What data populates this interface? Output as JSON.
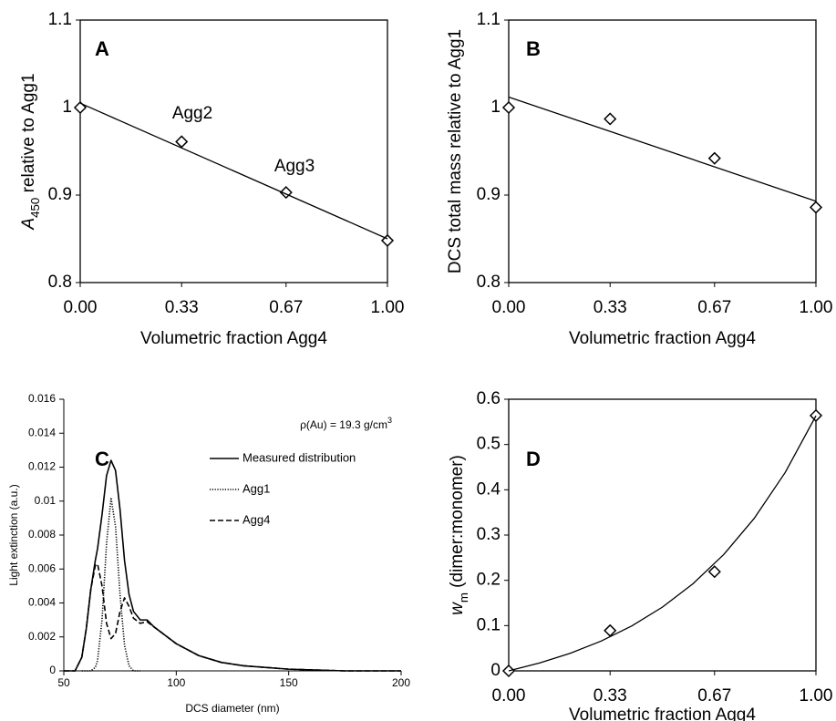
{
  "chart_data": [
    {
      "type": "scatter",
      "panel_label": "A",
      "x_label": "Volumetric fraction Agg4",
      "y_label": {
        "italic": "A",
        "sub": "450",
        "text": " relative to Agg1"
      },
      "xlim": [
        0,
        1
      ],
      "xticks": [
        {
          "value": 0,
          "label": "0.00"
        },
        0.33,
        0.67,
        {
          "value": 1,
          "label": "1.00"
        }
      ],
      "ylim": [
        0.8,
        1.1
      ],
      "yticks": [
        0.8,
        0.9,
        1,
        1.1
      ],
      "annotations": [
        "Agg2",
        "Agg3"
      ],
      "series": [
        {
          "style": "markers",
          "color": "#000000",
          "x": [
            0,
            0.33,
            0.67,
            1
          ],
          "values": [
            1.0,
            0.961,
            0.903,
            0.848
          ]
        },
        {
          "style": "line",
          "color": "#000000",
          "x": [
            0,
            1
          ],
          "values": [
            1.005,
            0.85
          ]
        }
      ]
    },
    {
      "type": "scatter",
      "panel_label": "B",
      "x_label": "Volumetric fraction Agg4",
      "y_label": "DCS total mass relative to Agg1",
      "xlim": [
        0,
        1
      ],
      "xticks": [
        {
          "value": 0,
          "label": "0.00"
        },
        0.33,
        0.67,
        {
          "value": 1,
          "label": "1.00"
        }
      ],
      "ylim": [
        0.8,
        1.1
      ],
      "yticks": [
        0.8,
        0.9,
        1,
        1.1
      ],
      "series": [
        {
          "style": "markers",
          "color": "#000000",
          "x": [
            0,
            0.33,
            0.67,
            1
          ],
          "values": [
            1.0,
            0.987,
            0.942,
            0.886
          ]
        },
        {
          "style": "line",
          "color": "#000000",
          "x": [
            0,
            1
          ],
          "values": [
            1.012,
            0.893
          ]
        }
      ]
    },
    {
      "type": "line",
      "panel_label": "C",
      "x_label": "DCS diameter (nm)",
      "y_label": "Light extinction (a.u.)",
      "annotations": [
        {
          "text": "ρ(Au) = 19.3 g/cm",
          "sup": "3"
        }
      ],
      "xlim": [
        50,
        200
      ],
      "xticks": [
        50,
        100,
        150,
        200
      ],
      "ylim": [
        0,
        0.016
      ],
      "yticks": [
        0,
        0.002,
        0.004,
        0.006,
        0.008,
        0.01,
        0.012,
        0.014,
        0.016
      ],
      "x": [
        50,
        55,
        58,
        60,
        62,
        64,
        65,
        67,
        69,
        71,
        73,
        75,
        77,
        79,
        81,
        84,
        87,
        90,
        95,
        100,
        110,
        120,
        130,
        150,
        175,
        200
      ],
      "series": [
        {
          "name": "Measured distribution",
          "color": "#000000",
          "dash": "solid",
          "values": [
            0,
            0,
            0.0008,
            0.0025,
            0.0048,
            0.0065,
            0.0072,
            0.0092,
            0.0115,
            0.0124,
            0.0118,
            0.0095,
            0.0065,
            0.0045,
            0.0035,
            0.003,
            0.003,
            0.0026,
            0.0021,
            0.0016,
            0.0009,
            0.0005,
            0.0003,
            0.0001,
            0,
            0
          ]
        },
        {
          "name": "Agg1",
          "color": "#000000",
          "dash": "dotted",
          "values": [
            null,
            null,
            0,
            0,
            0,
            0.0002,
            0.0006,
            0.003,
            0.0075,
            0.0102,
            0.0085,
            0.0045,
            0.0015,
            0.0003,
            0,
            0,
            null,
            null,
            null,
            null,
            null,
            null,
            null,
            null,
            null,
            null
          ]
        },
        {
          "name": "Agg4",
          "color": "#000000",
          "dash": "dashed",
          "values": [
            0,
            0,
            0.0008,
            0.0025,
            0.0048,
            0.0062,
            0.0063,
            0.005,
            0.0028,
            0.0019,
            0.0022,
            0.0035,
            0.0043,
            0.0038,
            0.0031,
            0.0028,
            0.0029,
            0.0026,
            0.0021,
            0.0016,
            0.0009,
            0.0005,
            0.0003,
            0.0001,
            0,
            0
          ]
        }
      ]
    },
    {
      "type": "scatter",
      "panel_label": "D",
      "x_label": "Volumetric fraction Agg4",
      "y_label": {
        "italic": "w",
        "sub": "m",
        "text": " (dimer:monomer)"
      },
      "xlim": [
        0,
        1
      ],
      "xticks": [
        {
          "value": 0,
          "label": "0.00"
        },
        0.33,
        0.67,
        {
          "value": 1,
          "label": "1.00"
        }
      ],
      "ylim": [
        0,
        0.6
      ],
      "yticks": [
        0,
        0.1,
        0.2,
        0.3,
        0.4,
        0.5,
        0.6
      ],
      "series": [
        {
          "style": "markers",
          "color": "#000000",
          "x": [
            0,
            0.33,
            0.67,
            1
          ],
          "values": [
            0,
            0.089,
            0.219,
            0.564
          ]
        },
        {
          "style": "line",
          "color": "#000000",
          "x": [
            0,
            0.1,
            0.2,
            0.3,
            0.4,
            0.5,
            0.6,
            0.7,
            0.8,
            0.9,
            1
          ],
          "values": [
            0,
            0.0173,
            0.0388,
            0.0656,
            0.099,
            0.1407,
            0.1926,
            0.2571,
            0.3377,
            0.4383,
            0.5634
          ]
        }
      ]
    }
  ]
}
